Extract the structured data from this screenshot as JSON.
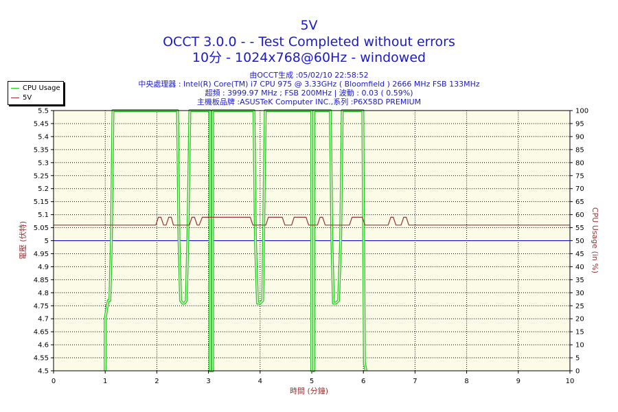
{
  "header": {
    "title": "5V",
    "subtitle1": "OCCT 3.0.0 -  - Test Completed without errors",
    "subtitle2": "10分 - 1024x768@60Hz - windowed",
    "info": [
      "由OCCT生成 :05/02/10 22:58:52",
      "中央處理器 : Intel(R) Core(TM) i7 CPU 975 @ 3.33GHz ( Bloomfield ) 2666 MHz FSB 133MHz",
      "超頻 : 3999.97 MHz ; FSB 200MHz | 波動 : 0.03 ( 0.59%)",
      "主機板品牌 :ASUSTeK Computer INC.,系列 :P6X58D PREMIUM"
    ]
  },
  "chart_data": {
    "type": "line",
    "xlabel": "時間 (分鐘)",
    "ylabel": "電壓 (伏特)",
    "y2label": "CPU Usage (in %)",
    "xlim": [
      0,
      10
    ],
    "ylim": [
      4.5,
      5.5
    ],
    "y2lim": [
      0,
      100
    ],
    "x_ticks": [
      "0",
      "1",
      "2",
      "3",
      "4",
      "5",
      "6",
      "7",
      "8",
      "9",
      "10"
    ],
    "y_ticks": [
      "4.5",
      "4.55",
      "4.6",
      "4.65",
      "4.7",
      "4.75",
      "4.8",
      "4.85",
      "4.9",
      "4.95",
      "5",
      "5.05",
      "5.1",
      "5.15",
      "5.2",
      "5.25",
      "5.3",
      "5.35",
      "5.4",
      "5.45",
      "5.5"
    ],
    "y2_ticks": [
      "0",
      "5",
      "10",
      "15",
      "20",
      "25",
      "30",
      "35",
      "40",
      "45",
      "50",
      "55",
      "60",
      "65",
      "70",
      "75",
      "80",
      "85",
      "90",
      "95",
      "100"
    ],
    "grid": true,
    "legend_position": "top-left",
    "reference_line": {
      "y": 5.0,
      "color": "#0000cc"
    },
    "series": [
      {
        "name": "CPU Usage",
        "axis": "right",
        "color": "#22cc22",
        "x": [
          1.0,
          1.0,
          1.03,
          1.06,
          1.09,
          1.12,
          1.15,
          1.18,
          2.4,
          2.43,
          2.46,
          2.5,
          2.54,
          2.57,
          2.6,
          2.64,
          3.03,
          3.03,
          3.08,
          3.08,
          3.88,
          3.91,
          3.95,
          4.0,
          4.05,
          4.1,
          5.0,
          5.0,
          5.04,
          5.04,
          5.36,
          5.39,
          5.42,
          5.47,
          5.52,
          5.56,
          5.59,
          5.99,
          6.02,
          6.05
        ],
        "y": [
          0,
          20,
          24,
          27,
          27,
          50,
          100,
          100,
          100,
          50,
          27,
          26,
          26,
          27,
          50,
          100,
          100,
          0,
          0,
          100,
          100,
          50,
          26,
          26,
          27,
          100,
          100,
          0,
          0,
          100,
          100,
          50,
          26,
          26,
          27,
          50,
          100,
          100,
          3,
          0
        ]
      },
      {
        "name": "5V",
        "axis": "left",
        "color": "#993333",
        "x": [
          0.0,
          1.98,
          2.03,
          2.08,
          2.13,
          2.18,
          2.23,
          2.28,
          2.32,
          2.63,
          2.68,
          2.73,
          2.78,
          2.82,
          2.88,
          3.81,
          3.86,
          4.11,
          4.16,
          4.43,
          4.48,
          4.61,
          4.66,
          4.89,
          4.94,
          5.11,
          5.16,
          5.21,
          5.26,
          5.73,
          5.78,
          5.98,
          6.03,
          6.48,
          6.53,
          6.58,
          6.63,
          6.73,
          6.78,
          6.83,
          6.88,
          6.93,
          6.98,
          10.0
        ],
        "y": [
          5.06,
          5.06,
          5.09,
          5.09,
          5.06,
          5.06,
          5.09,
          5.09,
          5.06,
          5.06,
          5.09,
          5.09,
          5.06,
          5.06,
          5.09,
          5.09,
          5.06,
          5.06,
          5.09,
          5.09,
          5.06,
          5.06,
          5.09,
          5.09,
          5.06,
          5.06,
          5.09,
          5.09,
          5.06,
          5.06,
          5.09,
          5.09,
          5.06,
          5.06,
          5.09,
          5.09,
          5.06,
          5.06,
          5.09,
          5.09,
          5.06,
          5.06,
          5.06,
          5.06
        ]
      }
    ]
  }
}
